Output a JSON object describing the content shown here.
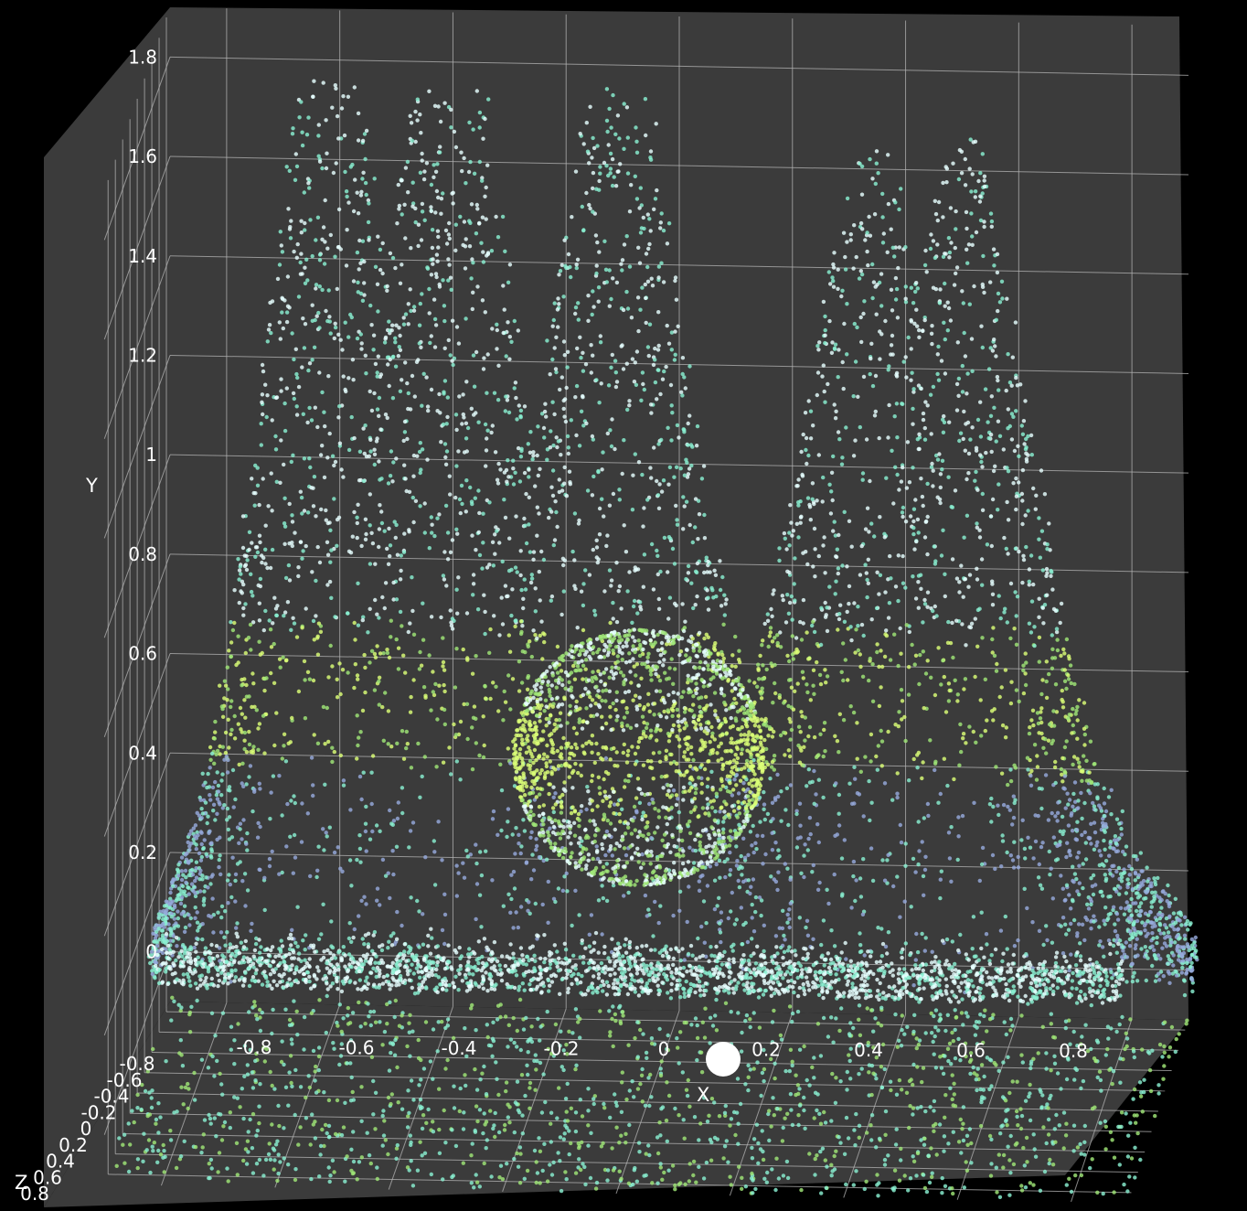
{
  "chart_data": {
    "type": "scatter",
    "dimensions": 3,
    "title": "",
    "xlabel": "X",
    "ylabel": "Y",
    "zlabel": "Z",
    "xlim": [
      -0.9,
      0.9
    ],
    "ylim": [
      -0.1,
      1.9
    ],
    "zlim": [
      -0.9,
      0.9
    ],
    "x_ticks": [
      "-0.8",
      "-0.6",
      "-0.4",
      "-0.2",
      "0",
      "0.2",
      "0.4",
      "0.6",
      "0.8"
    ],
    "y_ticks": [
      "0",
      "0.2",
      "0.4",
      "0.6",
      "0.8",
      "1",
      "1.2",
      "1.4",
      "1.6",
      "1.8"
    ],
    "z_ticks": [
      "-0.8",
      "-0.6",
      "-0.4",
      "-0.2",
      "0",
      "0.2",
      "0.4",
      "0.6",
      "0.8"
    ],
    "grid": true,
    "background_color": "#3b3b3b",
    "grid_color": "#b4b4b4",
    "marker_color": "#ffffff",
    "point_colors": [
      "#e6ffff",
      "#8af0d2",
      "#dcff78",
      "#a0e678",
      "#96aadc"
    ],
    "marker": {
      "x": 0.05,
      "y": -0.05,
      "z": 0
    },
    "structures": {
      "mountains": {
        "peaks": [
          {
            "x": -0.62,
            "height": 1.74
          },
          {
            "x": -0.4,
            "height": 1.62
          },
          {
            "x": -0.1,
            "height": 1.55
          },
          {
            "x": 0.35,
            "height": 1.28
          },
          {
            "x": 0.52,
            "height": 1.35
          }
        ]
      },
      "sphere": {
        "center": [
          -0.05,
          0.48,
          0
        ],
        "radius": 0.22
      },
      "ground_ring": {
        "x_range": [
          -0.9,
          0.8
        ],
        "y": 0.02
      },
      "floor_spread": {
        "x_range": [
          -0.9,
          0.9
        ],
        "z_range": [
          -0.9,
          0.9
        ]
      }
    }
  }
}
